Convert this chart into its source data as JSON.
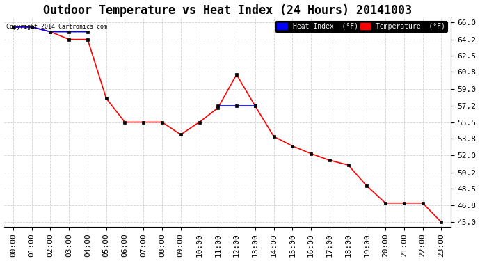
{
  "title": "Outdoor Temperature vs Heat Index (24 Hours) 20141003",
  "copyright": "Copyright 2014 Cartronics.com",
  "background_color": "#ffffff",
  "plot_bg_color": "#ffffff",
  "grid_color": "#cccccc",
  "x_labels": [
    "00:00",
    "01:00",
    "02:00",
    "03:00",
    "04:00",
    "05:00",
    "06:00",
    "07:00",
    "08:00",
    "09:00",
    "10:00",
    "11:00",
    "12:00",
    "13:00",
    "14:00",
    "15:00",
    "16:00",
    "17:00",
    "18:00",
    "19:00",
    "20:00",
    "21:00",
    "22:00",
    "23:00"
  ],
  "y_ticks": [
    45.0,
    46.8,
    48.5,
    50.2,
    52.0,
    53.8,
    55.5,
    57.2,
    59.0,
    60.8,
    62.5,
    64.2,
    66.0
  ],
  "ylim": [
    44.5,
    66.5
  ],
  "temperature": [
    65.5,
    65.5,
    65.0,
    64.2,
    64.2,
    58.0,
    55.5,
    55.5,
    55.5,
    54.2,
    55.5,
    57.0,
    60.5,
    57.2,
    54.0,
    53.0,
    52.2,
    51.5,
    51.0,
    48.8,
    47.0,
    47.0,
    47.0,
    45.0
  ],
  "heat_index": [
    65.5,
    65.5,
    65.0,
    65.0,
    65.0,
    null,
    null,
    null,
    null,
    null,
    null,
    57.2,
    57.2,
    57.2,
    null,
    null,
    null,
    null,
    null,
    null,
    null,
    null,
    null,
    null
  ],
  "temp_color": "#ff0000",
  "heat_color": "#0000ff",
  "legend_heat_bg": "#0000ff",
  "legend_temp_bg": "#ff0000",
  "legend_text_color": "#ffffff",
  "title_fontsize": 12,
  "tick_fontsize": 8,
  "marker_size": 3
}
